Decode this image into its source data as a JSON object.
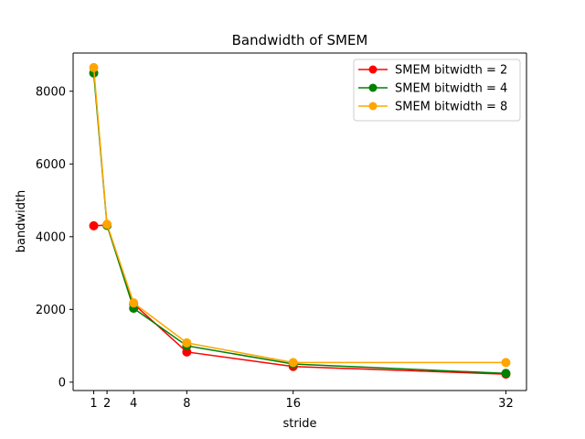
{
  "chart_data": {
    "type": "line",
    "title": "Bandwidth of SMEM",
    "xlabel": "stride",
    "ylabel": "bandwidth",
    "x": [
      1,
      2,
      4,
      8,
      16,
      32
    ],
    "xticks": [
      "1",
      "2",
      "4",
      "8",
      "16",
      "32"
    ],
    "xlim": [
      -0.55,
      33.55
    ],
    "yticks": [
      "0",
      "2000",
      "4000",
      "6000",
      "8000"
    ],
    "ylim": [
      -230,
      9050
    ],
    "legend_position": "top-right",
    "grid": false,
    "series": [
      {
        "name": "SMEM bitwidth = 2",
        "color": "#ff0000",
        "values": [
          4300,
          4320,
          2150,
          830,
          430,
          220
        ]
      },
      {
        "name": "SMEM bitwidth = 4",
        "color": "#008000",
        "values": [
          8500,
          4310,
          2030,
          1000,
          500,
          240
        ]
      },
      {
        "name": "SMEM bitwidth = 8",
        "color": "#ffa500",
        "values": [
          8650,
          4340,
          2180,
          1080,
          540,
          540
        ]
      }
    ]
  }
}
